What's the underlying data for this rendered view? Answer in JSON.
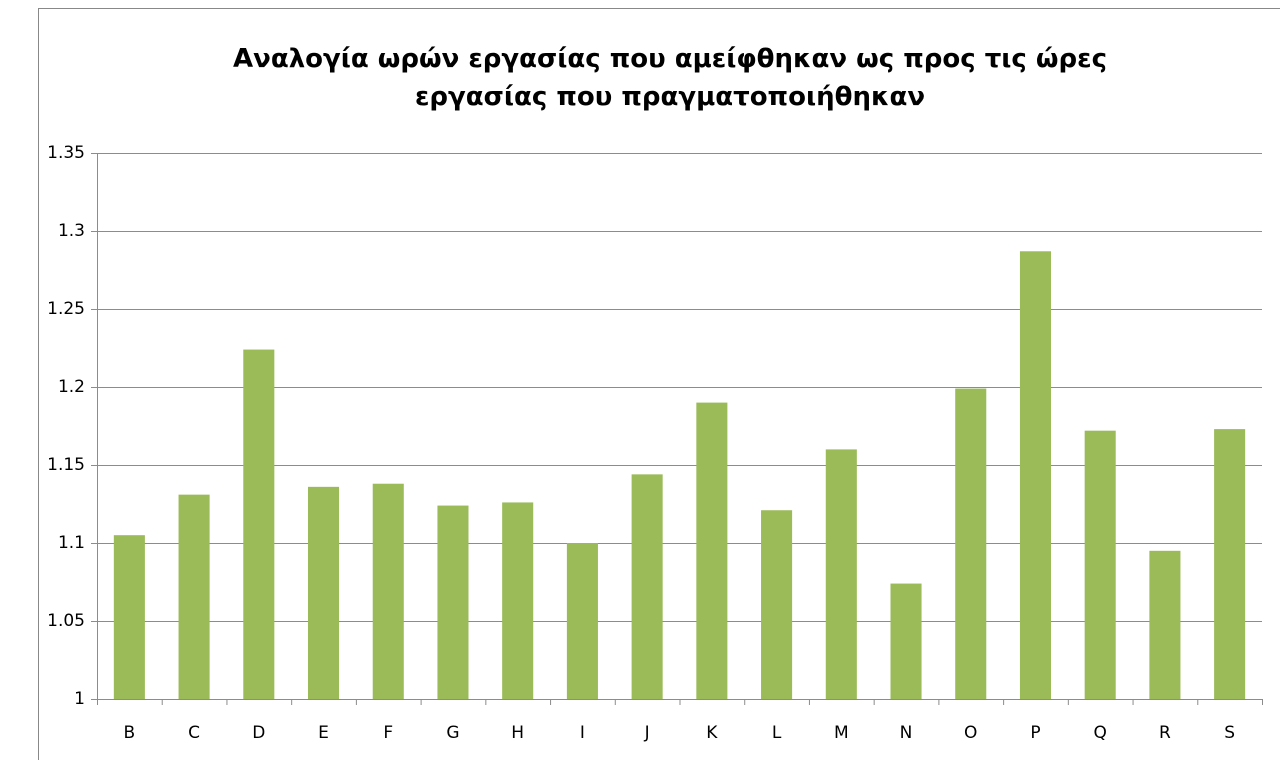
{
  "chart_data": {
    "type": "bar",
    "title": "Αναλογία ωρών εργασίας που αμείφθηκαν ως προς τις ώρες εργασίας που πραγματοποιήθηκαν",
    "categories": [
      "B",
      "C",
      "D",
      "E",
      "F",
      "G",
      "H",
      "I",
      "J",
      "K",
      "L",
      "M",
      "N",
      "O",
      "P",
      "Q",
      "R",
      "S"
    ],
    "values": [
      1.105,
      1.131,
      1.224,
      1.136,
      1.138,
      1.124,
      1.126,
      1.1,
      1.144,
      1.19,
      1.121,
      1.16,
      1.074,
      1.199,
      1.287,
      1.172,
      1.095,
      1.173
    ],
    "color": "#9bbb59",
    "ylim": [
      1,
      1.35
    ],
    "yticks": [
      1,
      1.05,
      1.1,
      1.15,
      1.2,
      1.25,
      1.3,
      1.35
    ],
    "grid": true
  }
}
